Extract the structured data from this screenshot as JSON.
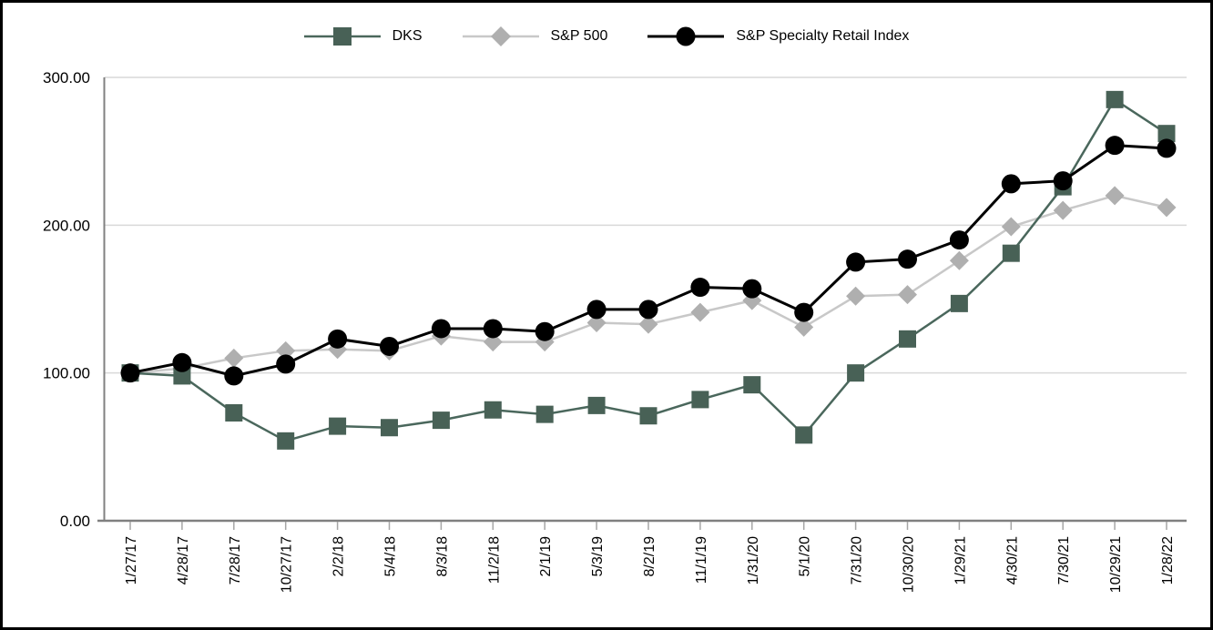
{
  "chart_data": {
    "type": "line",
    "title": "",
    "xlabel": "",
    "ylabel": "",
    "categories": [
      "1/27/17",
      "4/28/17",
      "7/28/17",
      "10/27/17",
      "2/2/18",
      "5/4/18",
      "8/3/18",
      "11/2/18",
      "2/1/19",
      "5/3/19",
      "8/2/19",
      "11/1/19",
      "1/31/20",
      "5/1/20",
      "7/31/20",
      "10/30/20",
      "1/29/21",
      "4/30/21",
      "7/30/21",
      "10/29/21",
      "1/28/22"
    ],
    "series": [
      {
        "name": "DKS",
        "marker": "square",
        "line_color": "#4A675C",
        "marker_color": "#486156",
        "values": [
          100,
          98,
          73,
          54,
          64,
          63,
          68,
          75,
          72,
          78,
          71,
          82,
          92,
          58,
          100,
          123,
          147,
          181,
          226,
          285,
          262
        ]
      },
      {
        "name": "S&P 500",
        "marker": "diamond",
        "line_color": "#C8C8C8",
        "marker_color": "#AFAFAF",
        "values": [
          100,
          103,
          110,
          115,
          116,
          115,
          125,
          121,
          121,
          134,
          133,
          141,
          149,
          131,
          152,
          153,
          176,
          199,
          210,
          220,
          212
        ]
      },
      {
        "name": "S&P Specialty Retail Index",
        "marker": "circle",
        "line_color": "#000000",
        "marker_color": "#000000",
        "values": [
          100,
          107,
          98,
          106,
          123,
          118,
          130,
          130,
          128,
          143,
          143,
          158,
          157,
          141,
          175,
          177,
          190,
          228,
          230,
          254,
          252
        ]
      }
    ],
    "ylim": [
      0,
      300
    ],
    "yticks": [
      {
        "value": 0,
        "label": "0.00"
      },
      {
        "value": 100,
        "label": "100.00"
      },
      {
        "value": 200,
        "label": "200.00"
      },
      {
        "value": 300,
        "label": "300.00"
      }
    ],
    "grid": true,
    "legend_position": "top",
    "colors": {
      "grid": "#D9D9D9",
      "axis": "#808080",
      "tick": "#A6A6A6",
      "text": "#000000",
      "background": "#FFFFFF",
      "border": "#000000"
    }
  }
}
